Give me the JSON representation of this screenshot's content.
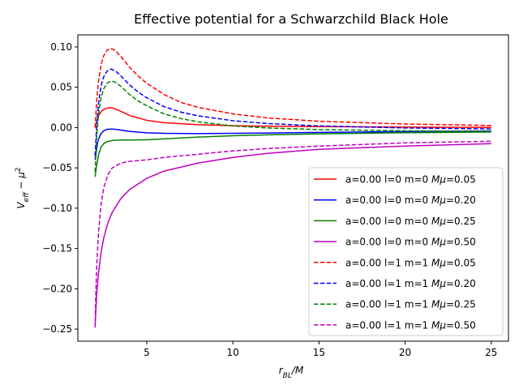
{
  "chart_data": {
    "type": "line",
    "title": "Effective potential for a Schwarzchild Black Hole",
    "xlabel": "r_BL/M",
    "ylabel": "V_eff − μ²",
    "xlim": [
      1.0,
      26.0
    ],
    "ylim": [
      -0.265,
      0.115
    ],
    "xticks": [
      5,
      10,
      15,
      20,
      25
    ],
    "yticks": [
      0.1,
      0.05,
      0.0,
      -0.05,
      -0.1,
      -0.15,
      -0.2,
      -0.25
    ],
    "ytick_labels": [
      "0.10",
      "0.05",
      "0.00",
      "−0.05",
      "−0.10",
      "−0.15",
      "−0.20",
      "−0.25"
    ],
    "grid": false,
    "legend_position": "lower right",
    "series": [
      {
        "name": "a=0.00 l=0 m=0 Mμ=0.05",
        "label_prefix": "a=0.00 l=0 m=0 ",
        "label_suffix": "=0.05",
        "color": "#ff0000",
        "dash": "solid",
        "x": [
          2.0,
          2.2,
          2.4,
          2.6,
          2.8,
          3.0,
          3.3,
          3.6,
          4,
          5,
          6,
          8,
          10,
          12,
          15,
          20,
          25
        ],
        "y": [
          0.0,
          0.015,
          0.021,
          0.0235,
          0.0245,
          0.0243,
          0.022,
          0.019,
          0.015,
          0.009,
          0.006,
          0.0035,
          0.0023,
          0.0017,
          0.0012,
          0.0006,
          0.0002
        ]
      },
      {
        "name": "a=0.00 l=0 m=0 Mμ=0.20",
        "label_prefix": "a=0.00 l=0 m=0 ",
        "label_suffix": "=0.20",
        "color": "#0000ff",
        "dash": "solid",
        "x": [
          2.0,
          2.15,
          2.3,
          2.5,
          2.7,
          3.0,
          3.3,
          3.6,
          4,
          5,
          6,
          8,
          10,
          12,
          15,
          20,
          25
        ],
        "y": [
          -0.04,
          -0.018,
          -0.009,
          -0.004,
          -0.0022,
          -0.0018,
          -0.0025,
          -0.0035,
          -0.0048,
          -0.0065,
          -0.0072,
          -0.0075,
          -0.0072,
          -0.0068,
          -0.006,
          -0.005,
          -0.0042
        ]
      },
      {
        "name": "a=0.00 l=0 m=0 Mμ=0.25",
        "label_prefix": "a=0.00 l=0 m=0 ",
        "label_suffix": "=0.25",
        "color": "#008000",
        "dash": "solid",
        "x": [
          2.0,
          2.1,
          2.2,
          2.35,
          2.5,
          2.7,
          3.0,
          3.5,
          4,
          5,
          6,
          8,
          10,
          12,
          15,
          20,
          25
        ],
        "y": [
          -0.061,
          -0.046,
          -0.034,
          -0.024,
          -0.02,
          -0.0175,
          -0.016,
          -0.0155,
          -0.0155,
          -0.0152,
          -0.014,
          -0.0118,
          -0.0102,
          -0.009,
          -0.0078,
          -0.0064,
          -0.0055
        ]
      },
      {
        "name": "a=0.00 l=0 m=0 Mμ=0.50",
        "label_prefix": "a=0.00 l=0 m=0 ",
        "label_suffix": "=0.50",
        "color": "#bf00bf",
        "dash": "solid",
        "x": [
          2.0,
          2.05,
          2.1,
          2.2,
          2.35,
          2.5,
          2.75,
          3.0,
          3.5,
          4,
          5,
          6,
          8,
          10,
          12,
          15,
          20,
          25
        ],
        "y": [
          -0.248,
          -0.225,
          -0.205,
          -0.18,
          -0.155,
          -0.137,
          -0.118,
          -0.105,
          -0.088,
          -0.077,
          -0.063,
          -0.054,
          -0.044,
          -0.037,
          -0.032,
          -0.027,
          -0.023,
          -0.02
        ]
      },
      {
        "name": "a=0.00 l=1 m=1 Mμ=0.05",
        "label_prefix": "a=0.00 l=1 m=1 ",
        "label_suffix": "=0.05",
        "color": "#ff0000",
        "dash": "dashed",
        "x": [
          2.0,
          2.1,
          2.2,
          2.35,
          2.5,
          2.7,
          2.9,
          3.0,
          3.2,
          3.5,
          4,
          4.5,
          5,
          6,
          7,
          8,
          10,
          12,
          15,
          20,
          25
        ],
        "y": [
          0.0,
          0.035,
          0.058,
          0.078,
          0.089,
          0.096,
          0.098,
          0.0975,
          0.095,
          0.088,
          0.075,
          0.064,
          0.055,
          0.041,
          0.031,
          0.025,
          0.017,
          0.012,
          0.0078,
          0.0044,
          0.0026
        ]
      },
      {
        "name": "a=0.00 l=1 m=1 Mμ=0.20",
        "label_prefix": "a=0.00 l=1 m=1 ",
        "label_suffix": "=0.20",
        "color": "#0000ff",
        "dash": "dashed",
        "x": [
          2.0,
          2.1,
          2.2,
          2.35,
          2.5,
          2.7,
          2.9,
          3.0,
          3.2,
          3.5,
          4,
          4.5,
          5,
          6,
          7,
          8,
          10,
          12,
          15,
          20,
          25
        ],
        "y": [
          -0.035,
          0.005,
          0.03,
          0.052,
          0.063,
          0.07,
          0.0725,
          0.072,
          0.07,
          0.064,
          0.053,
          0.044,
          0.037,
          0.026,
          0.019,
          0.0145,
          0.0085,
          0.005,
          0.002,
          -0.0005,
          -0.0017
        ]
      },
      {
        "name": "a=0.00 l=1 m=1 Mμ=0.25",
        "label_prefix": "a=0.00 l=1 m=1 ",
        "label_suffix": "=0.25",
        "color": "#008000",
        "dash": "dashed",
        "x": [
          2.0,
          2.1,
          2.2,
          2.35,
          2.5,
          2.7,
          2.9,
          3.0,
          3.2,
          3.5,
          4,
          4.5,
          5,
          6,
          7,
          8,
          10,
          12,
          15,
          20,
          25
        ],
        "y": [
          -0.055,
          -0.01,
          0.016,
          0.037,
          0.048,
          0.055,
          0.0575,
          0.0575,
          0.056,
          0.051,
          0.041,
          0.033,
          0.027,
          0.017,
          0.011,
          0.007,
          0.002,
          -0.0005,
          -0.0025,
          -0.004,
          -0.0048
        ]
      },
      {
        "name": "a=0.00 l=1 m=1 Mμ=0.50",
        "label_prefix": "a=0.00 l=1 m=1 ",
        "label_suffix": "=0.50",
        "color": "#bf00bf",
        "dash": "dashed",
        "x": [
          2.0,
          2.05,
          2.1,
          2.2,
          2.35,
          2.5,
          2.75,
          3.0,
          3.5,
          4,
          5,
          6,
          8,
          10,
          12,
          15,
          20,
          25
        ],
        "y": [
          -0.248,
          -0.2,
          -0.17,
          -0.13,
          -0.095,
          -0.075,
          -0.058,
          -0.05,
          -0.044,
          -0.042,
          -0.04,
          -0.037,
          -0.033,
          -0.029,
          -0.026,
          -0.023,
          -0.019,
          -0.017
        ]
      }
    ]
  }
}
